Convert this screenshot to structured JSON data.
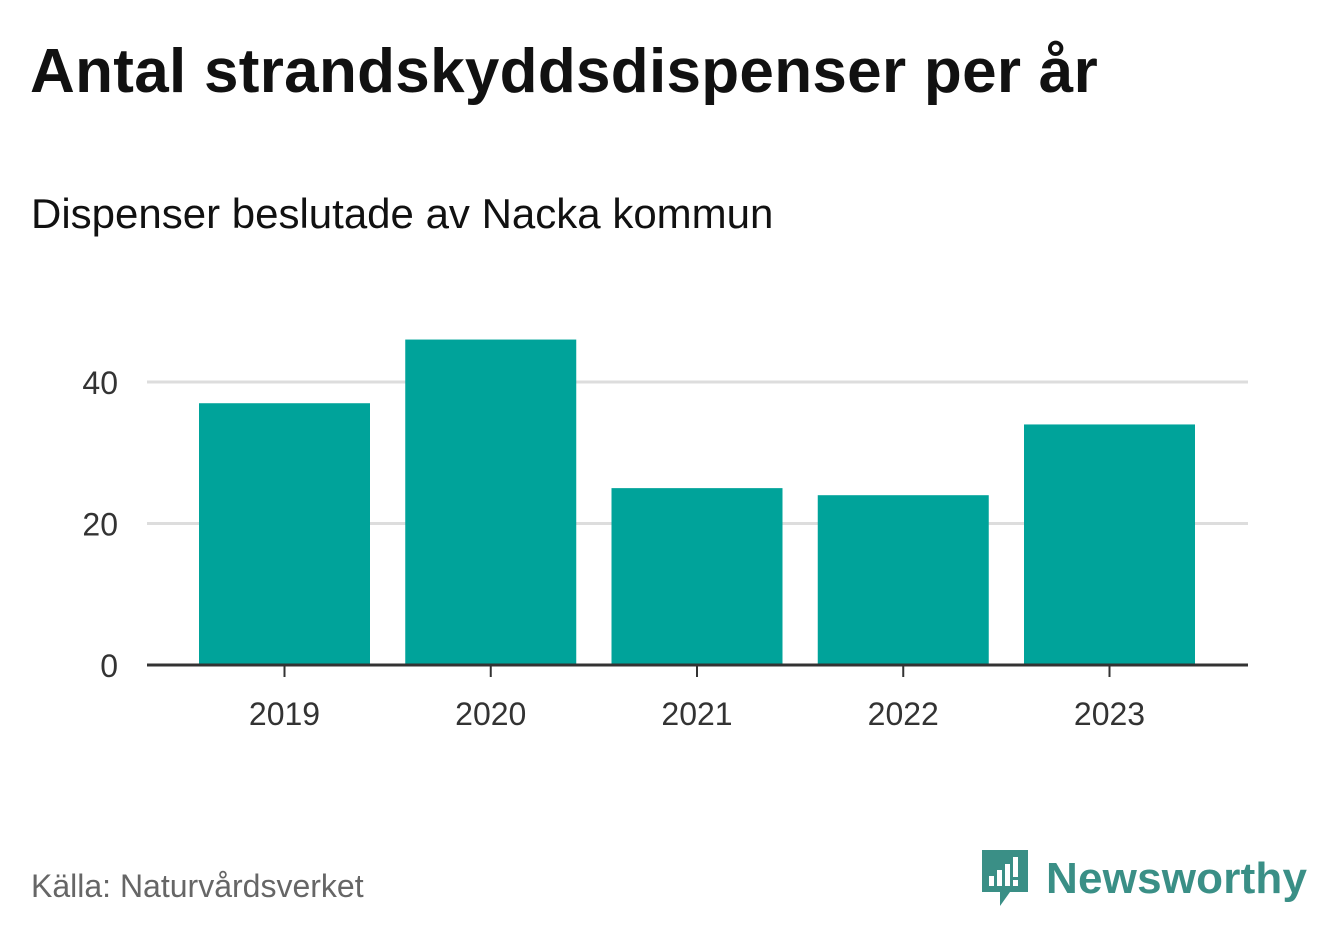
{
  "header": {
    "title": "Antal strandskyddsdispenser per år",
    "subtitle": "Dispenser beslutade av Nacka kommun"
  },
  "footer": {
    "source": "Källa: Naturvårdsverket",
    "brand": "Newsworthy",
    "brand_icon": "newsworthy-logo-icon"
  },
  "colors": {
    "bar": "#00a39a",
    "grid": "#dddddd",
    "axis": "#333333",
    "text": "#333333",
    "brand": "#3a8f86"
  },
  "chart_data": {
    "type": "bar",
    "title": "Antal strandskyddsdispenser per år",
    "subtitle": "Dispenser beslutade av Nacka kommun",
    "categories": [
      "2019",
      "2020",
      "2021",
      "2022",
      "2023"
    ],
    "values": [
      37,
      46,
      25,
      24,
      34
    ],
    "xlabel": "",
    "ylabel": "",
    "ylim": [
      0,
      50
    ],
    "yticks": [
      0,
      20,
      40
    ],
    "grid": true,
    "legend": "none"
  }
}
